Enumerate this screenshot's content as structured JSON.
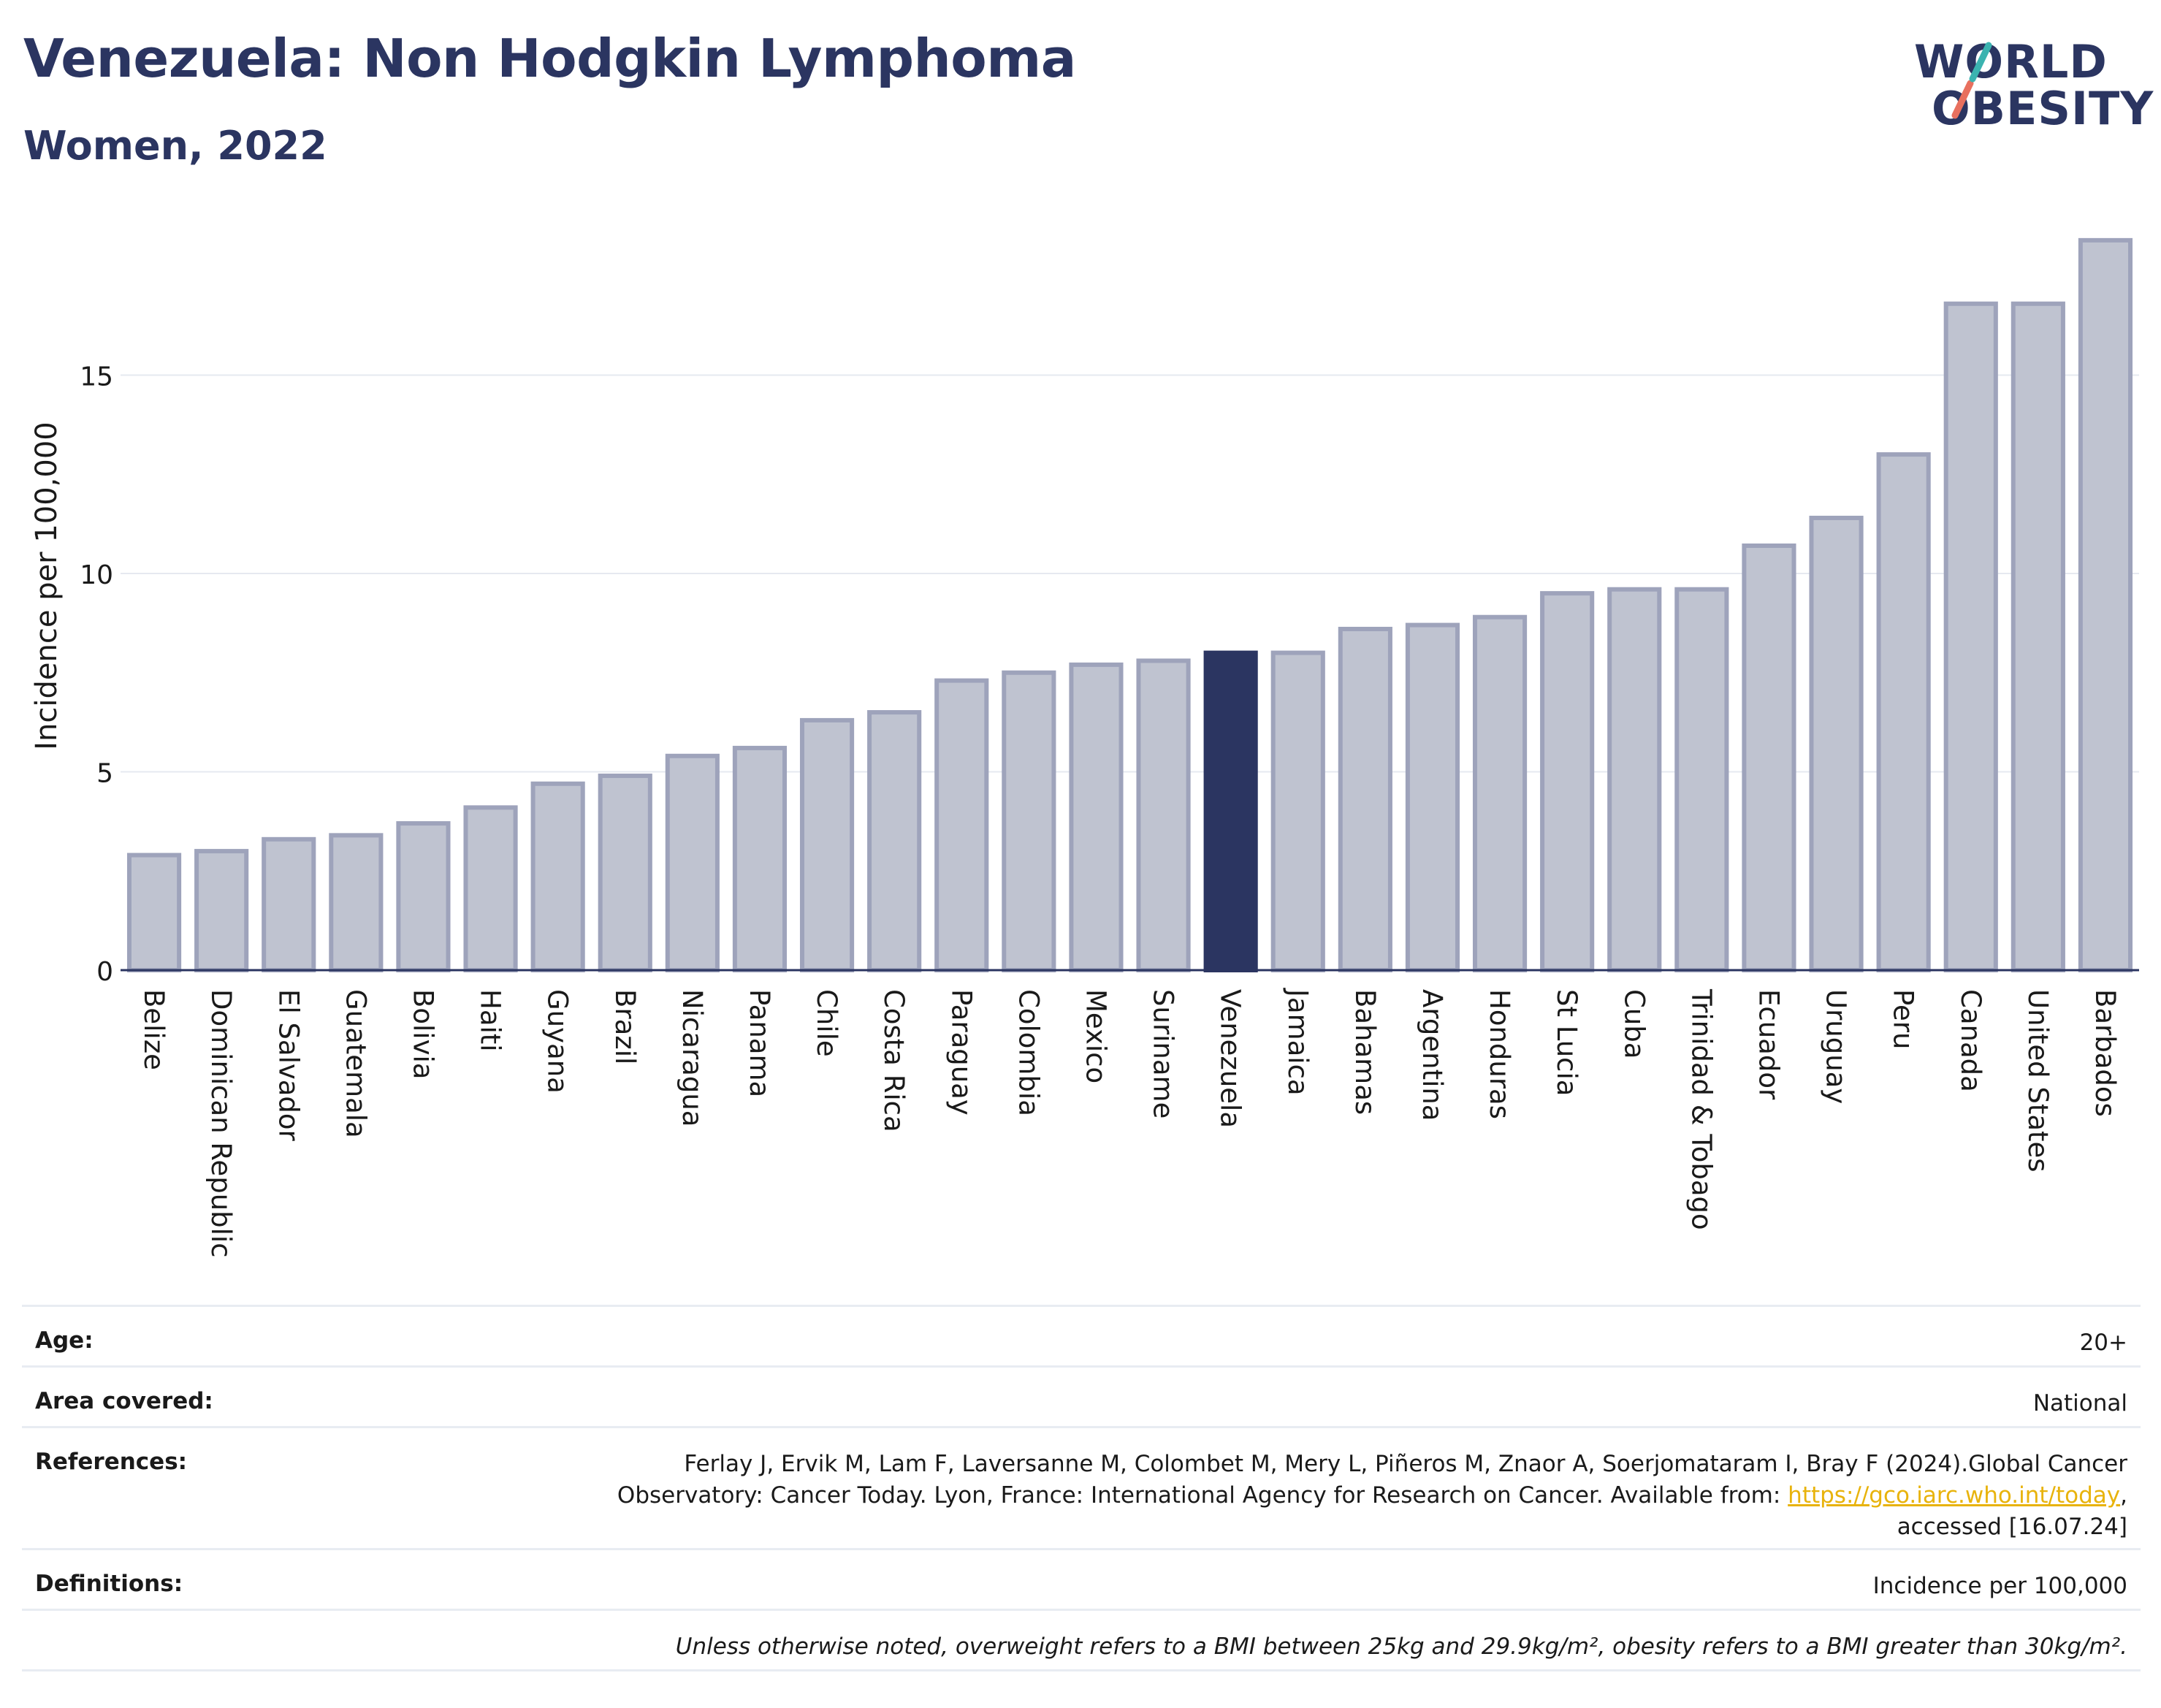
{
  "header": {
    "title": "Venezuela: Non Hodgkin Lymphoma",
    "subtitle": "Women, 2022"
  },
  "logo": {
    "line1": "WORLD",
    "line2": "OBESITY"
  },
  "colors": {
    "highlight_bar": "#2b3561",
    "other_bar": "#bfc3d0",
    "bar_border": "#9ea3bb",
    "grid": "#e6e9f0",
    "axis": "#2b3561",
    "link": "#e8b30c",
    "logo_teal": "#3bb3b0",
    "logo_coral": "#e8705e"
  },
  "chart_data": {
    "type": "bar",
    "ylabel": "Incidence per 100,000",
    "xlabel": "",
    "ylim": [
      0,
      18.6
    ],
    "yticks": [
      0,
      5,
      10,
      15
    ],
    "grid": true,
    "highlight": "Venezuela",
    "categories": [
      "Belize",
      "Dominican Republic",
      "El Salvador",
      "Guatemala",
      "Bolivia",
      "Haiti",
      "Guyana",
      "Brazil",
      "Nicaragua",
      "Panama",
      "Chile",
      "Costa Rica",
      "Paraguay",
      "Colombia",
      "Mexico",
      "Suriname",
      "Venezuela",
      "Jamaica",
      "Bahamas",
      "Argentina",
      "Honduras",
      "St Lucia",
      "Cuba",
      "Trinidad & Tobago",
      "Ecuador",
      "Uruguay",
      "Peru",
      "Canada",
      "United States",
      "Barbados"
    ],
    "values": [
      2.9,
      3.0,
      3.3,
      3.4,
      3.7,
      4.1,
      4.7,
      4.9,
      5.4,
      5.6,
      6.3,
      6.5,
      7.3,
      7.5,
      7.7,
      7.8,
      8.0,
      8.0,
      8.6,
      8.7,
      8.9,
      9.5,
      9.6,
      9.6,
      10.7,
      11.4,
      13.0,
      16.8,
      16.8,
      18.4
    ]
  },
  "meta": {
    "age_label": "Age:",
    "age_value": "20+",
    "area_label": "Area covered:",
    "area_value": "National",
    "references_label": "References:",
    "references_line1": "Ferlay J, Ervik M, Lam F, Laversanne M, Colombet M, Mery L, Piñeros M, Znaor A, Soerjomataram I, Bray F (2024).Global Cancer",
    "references_line2": "Observatory: Cancer Today. Lyon, France: International Agency for Research on Cancer. Available from: ",
    "references_link": "https://gco.iarc.who.int/today",
    "references_line2_end": ",",
    "references_line3": "accessed [16.07.24]",
    "definitions_label": "Definitions:",
    "definitions_value": "Incidence per 100,000",
    "note": "Unless otherwise noted, overweight refers to a BMI between 25kg and 29.9kg/m², obesity refers to a BMI greater than 30kg/m²."
  }
}
